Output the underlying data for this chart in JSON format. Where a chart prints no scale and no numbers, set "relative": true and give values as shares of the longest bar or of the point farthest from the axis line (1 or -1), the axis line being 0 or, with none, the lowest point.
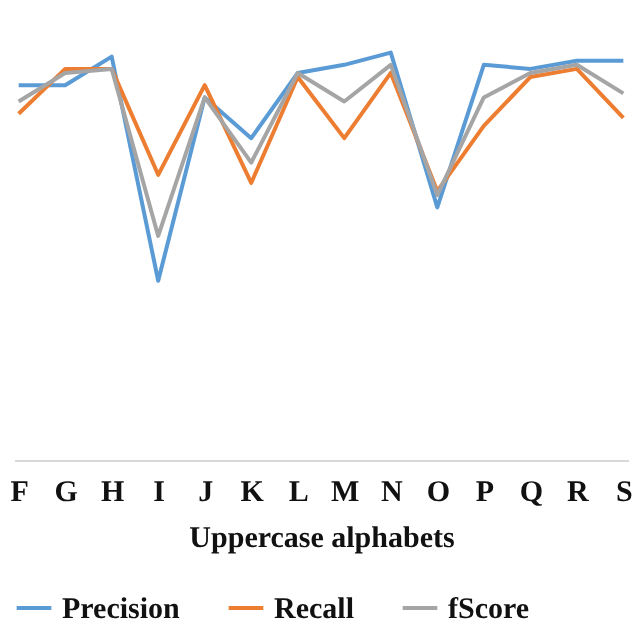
{
  "chart_data": {
    "type": "line",
    "relative": true,
    "xlabel": "Uppercase alphabets",
    "legend": "bottom",
    "categories": [
      "F",
      "G",
      "H",
      "I",
      "J",
      "K",
      "L",
      "M",
      "N",
      "O",
      "P",
      "Q",
      "R",
      "S"
    ],
    "series": [
      {
        "name": "Precision",
        "color": "#5b9bd5",
        "values": [
          0.92,
          0.92,
          0.99,
          0.44,
          0.89,
          0.79,
          0.95,
          0.97,
          1.0,
          0.62,
          0.97,
          0.96,
          0.98,
          0.98
        ]
      },
      {
        "name": "Recall",
        "color": "#ed7d31",
        "values": [
          0.85,
          0.96,
          0.96,
          0.7,
          0.92,
          0.68,
          0.94,
          0.79,
          0.95,
          0.66,
          0.82,
          0.94,
          0.96,
          0.84
        ]
      },
      {
        "name": "fScore",
        "color": "#a5a5a5",
        "values": [
          0.88,
          0.95,
          0.96,
          0.55,
          0.89,
          0.73,
          0.95,
          0.88,
          0.97,
          0.65,
          0.89,
          0.95,
          0.97,
          0.9
        ]
      }
    ]
  }
}
